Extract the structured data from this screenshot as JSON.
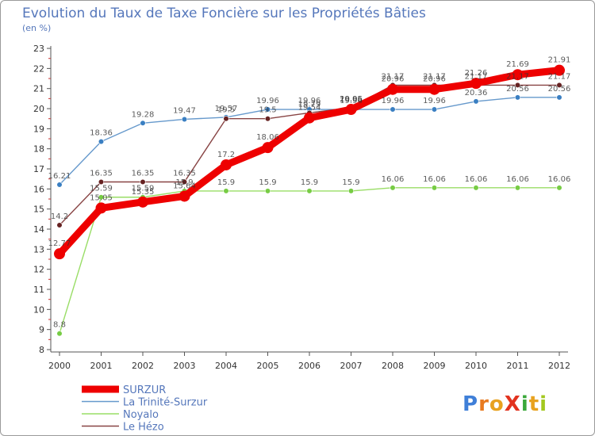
{
  "chart_data": {
    "type": "line",
    "title": "Evolution du Taux de Taxe Foncière sur les Propriétés Bâties",
    "subtitle": "(en %)",
    "xlabel": "",
    "ylabel": "",
    "x": [
      "2000",
      "2001",
      "2002",
      "2003",
      "2004",
      "2005",
      "2006",
      "2007",
      "2008",
      "2009",
      "2010",
      "2011",
      "2012"
    ],
    "y_ticks": [
      "8",
      "9",
      "10",
      "11",
      "12",
      "13",
      "14",
      "15",
      "16",
      "17",
      "18",
      "19",
      "20",
      "21",
      "22",
      "23"
    ],
    "ylim": [
      8,
      23
    ],
    "grid": false,
    "legend_position": "bottom-left",
    "series": [
      {
        "name": "La Trinité-Surzur",
        "color": "#6699cc",
        "marker": "#3a7fc2",
        "values": [
          16.21,
          18.36,
          19.28,
          19.47,
          19.57,
          19.96,
          19.96,
          19.96,
          19.96,
          19.96,
          20.36,
          20.56,
          20.56
        ],
        "labels": [
          "16.21",
          "18.36",
          "19.28",
          "19.47",
          "19.57",
          "19.96",
          "19.96",
          "19.96",
          "19.96",
          "19.96",
          "20.36",
          "20.56",
          "20.56"
        ]
      },
      {
        "name": "Noyalo",
        "color": "#99dd66",
        "marker": "#77cc44",
        "values": [
          8.8,
          15.59,
          15.59,
          15.9,
          15.9,
          15.9,
          15.9,
          15.9,
          16.06,
          16.06,
          16.06,
          16.06,
          16.06
        ],
        "labels": [
          "8.8",
          "15.59",
          "15.59",
          "15.9",
          "15.9",
          "15.9",
          "15.9",
          "15.9",
          "16.06",
          "16.06",
          "16.06",
          "16.06",
          "16.06"
        ]
      },
      {
        "name": "Le Hézo",
        "color": "#884444",
        "marker": "#662222",
        "values": [
          14.2,
          16.35,
          16.35,
          16.35,
          19.5,
          19.5,
          19.79,
          20.05,
          21.17,
          21.17,
          21.17,
          21.17,
          21.17
        ],
        "labels": [
          "14.2",
          "16.35",
          "16.35",
          "16.35",
          "19.5",
          "19.5",
          "19.79",
          "20.05",
          "21.17",
          "21.17",
          "21.17",
          "21.17",
          "21.17"
        ]
      },
      {
        "name": "SURZUR",
        "color": "#ee0000",
        "marker": "#ee0000",
        "values": [
          12.77,
          15.05,
          15.35,
          15.64,
          17.2,
          18.06,
          19.54,
          19.96,
          20.96,
          20.96,
          21.26,
          21.69,
          21.91
        ],
        "labels": [
          "12.77",
          "15.05",
          "15.35",
          "15.64",
          "17.2",
          "18.06",
          "19.54",
          "19.96",
          "20.96",
          "20.96",
          "21.26",
          "21.69",
          "21.91"
        ]
      }
    ],
    "legend": [
      "SURZUR",
      "La Trinité-Surzur",
      "Noyalo",
      "Le Hézo"
    ]
  },
  "logo": "ProXiti"
}
